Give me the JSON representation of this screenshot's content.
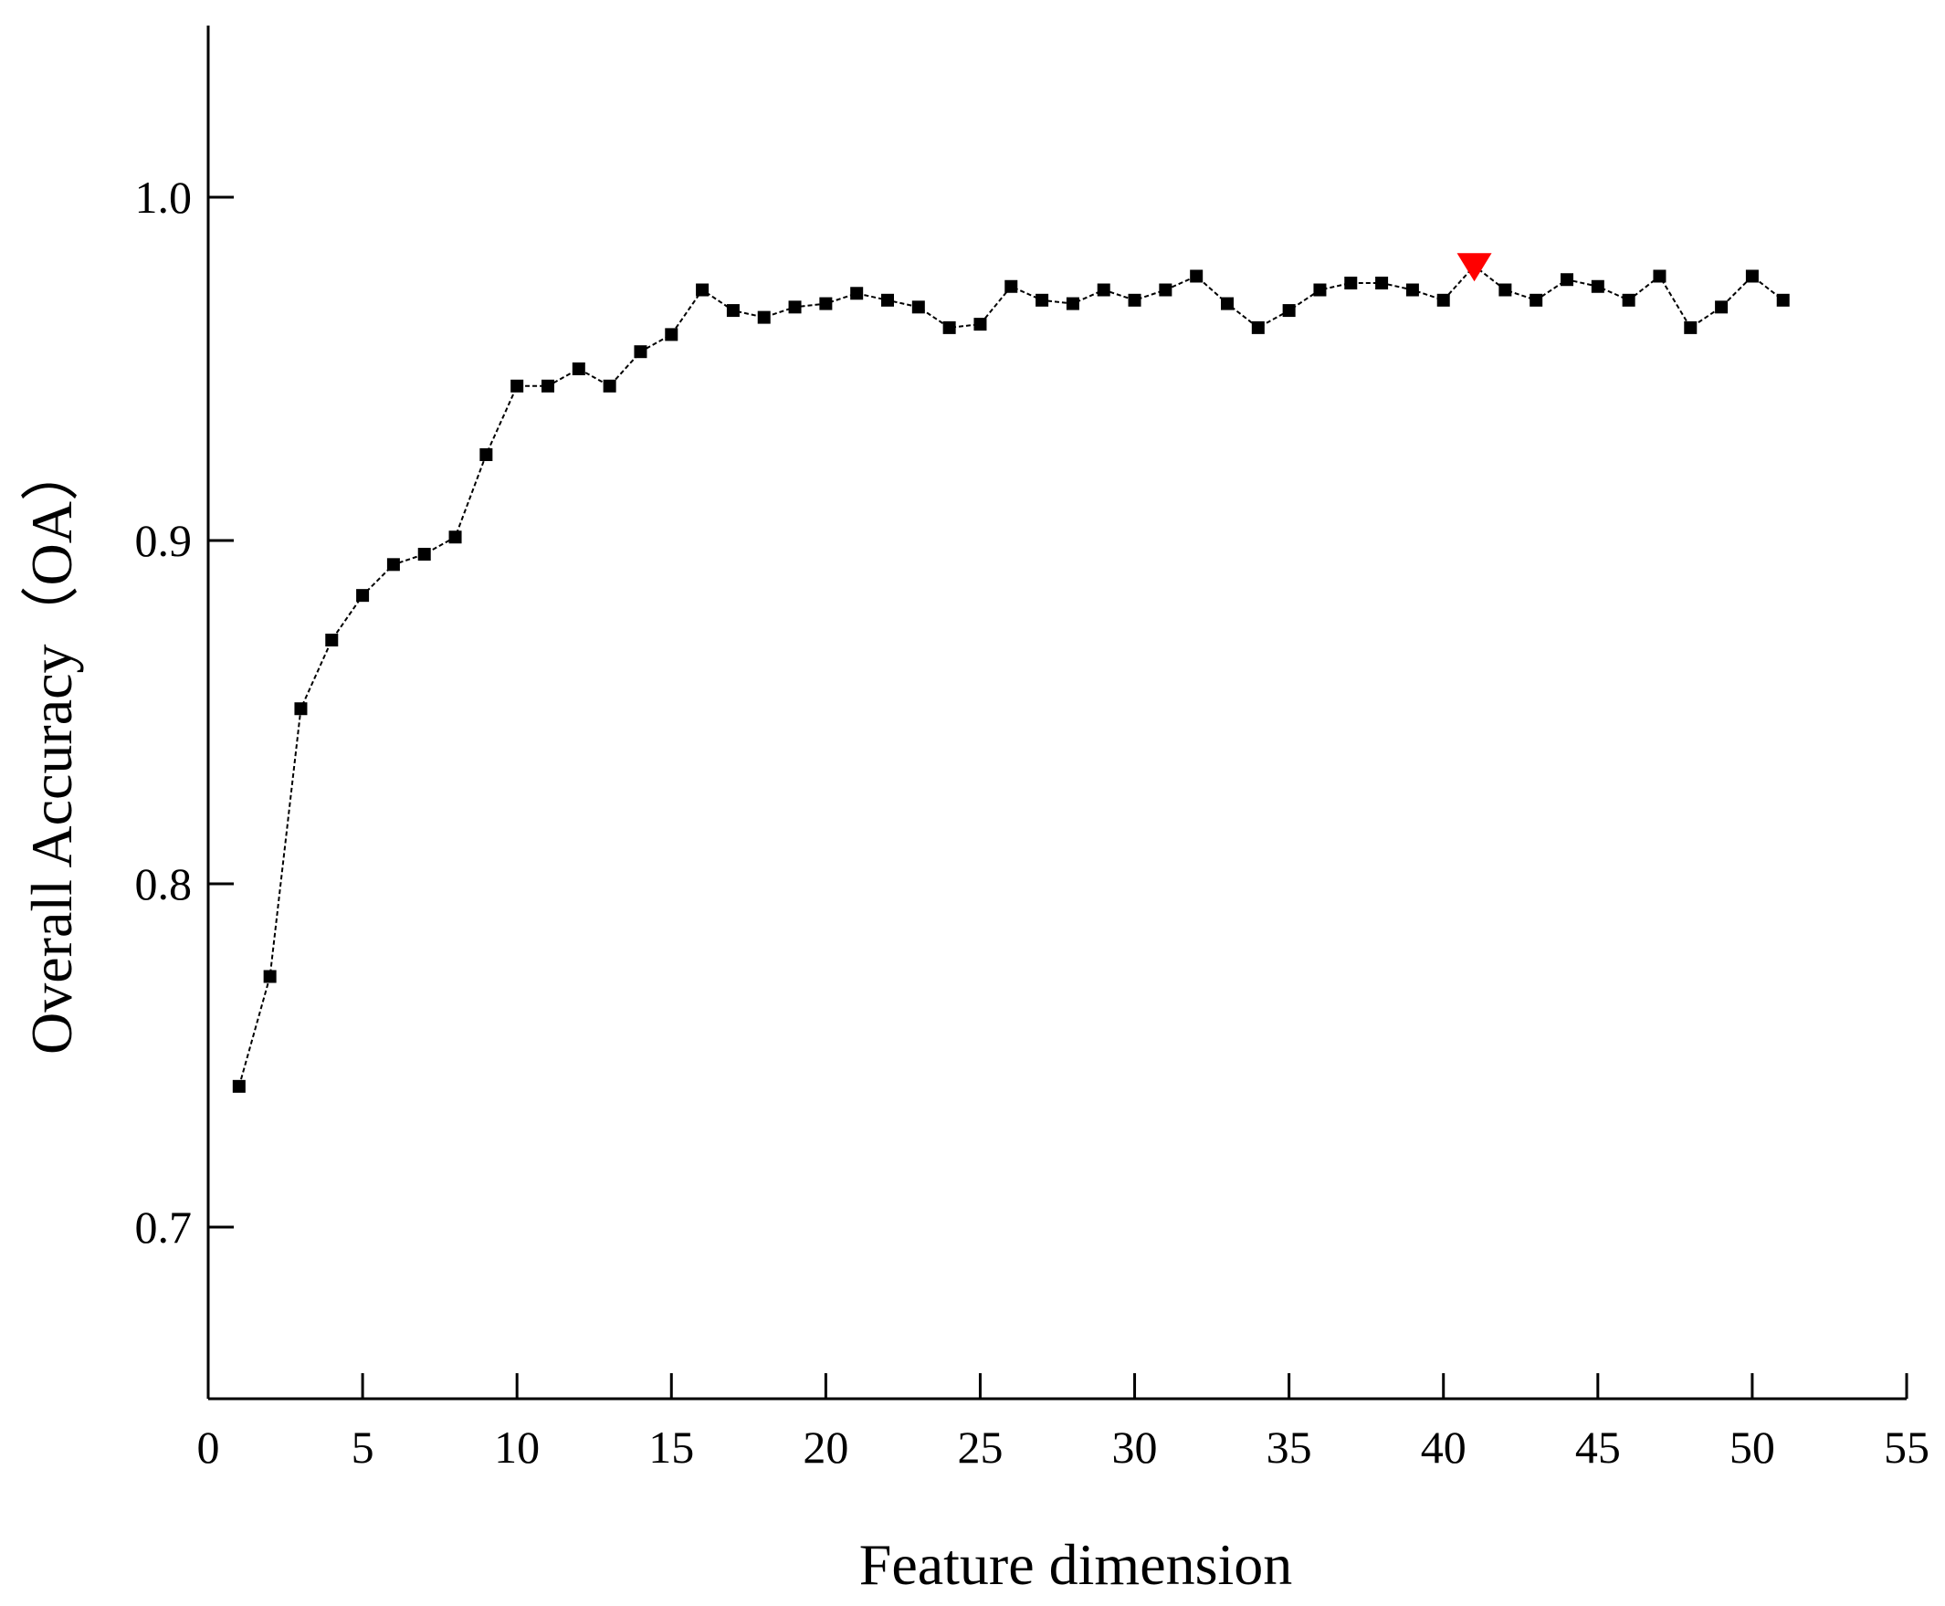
{
  "chart_data": {
    "type": "line",
    "title": "",
    "xlabel": "Feature dimension",
    "ylabel": "Overall Accuracy（OA）",
    "xlim": [
      0,
      55
    ],
    "ylim": [
      0.65,
      1.05
    ],
    "x_ticks": [
      0,
      5,
      10,
      15,
      20,
      25,
      30,
      35,
      40,
      45,
      50,
      55
    ],
    "x_tick_labels": [
      "0",
      "5",
      "10",
      "15",
      "20",
      "25",
      "30",
      "35",
      "40",
      "45",
      "50",
      "55"
    ],
    "y_ticks": [
      0.7,
      0.8,
      0.9,
      1.0
    ],
    "y_tick_labels": [
      "0.7",
      "0.8",
      "0.9",
      "1.0"
    ],
    "grid": false,
    "legend": "none",
    "line_color": "#000000",
    "highlight_color": "#ff0000",
    "series": [
      {
        "x": [
          1,
          2,
          3,
          4,
          5,
          6,
          7,
          8,
          9,
          10,
          11,
          12,
          13,
          14,
          15,
          16,
          17,
          18,
          19,
          20,
          21,
          22,
          23,
          24,
          25,
          26,
          27,
          28,
          29,
          30,
          31,
          32,
          33,
          34,
          35,
          36,
          37,
          38,
          39,
          40,
          41,
          42,
          43,
          44,
          45,
          46,
          47,
          48,
          49,
          50,
          51
        ],
        "values": [
          0.741,
          0.773,
          0.851,
          0.871,
          0.884,
          0.893,
          0.896,
          0.901,
          0.925,
          0.945,
          0.945,
          0.95,
          0.945,
          0.955,
          0.96,
          0.973,
          0.967,
          0.965,
          0.968,
          0.969,
          0.972,
          0.97,
          0.968,
          0.962,
          0.963,
          0.974,
          0.97,
          0.969,
          0.973,
          0.97,
          0.973,
          0.977,
          0.969,
          0.962,
          0.967,
          0.973,
          0.975,
          0.975,
          0.973,
          0.97,
          0.98,
          0.973,
          0.97,
          0.976,
          0.974,
          0.97,
          0.977,
          0.962,
          0.968,
          0.977,
          0.97
        ]
      }
    ],
    "highlight_point": {
      "x": 41,
      "y": 0.98,
      "marker": "triangle-down"
    }
  }
}
